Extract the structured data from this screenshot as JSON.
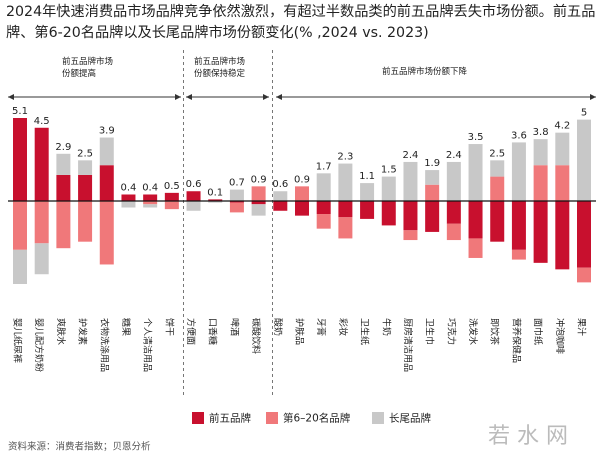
{
  "chart_data": {
    "type": "bar",
    "stacked": true,
    "title": "2024年快速消费品市场品牌竞争依然激烈，有超过半数品类的前五品牌丢失市场份额。前五品牌、第6-20名品牌以及长尾品牌市场份额变化(% ,2024 vs. 2023)",
    "annotations": [
      "前五品牌市场份额提高",
      "前五品牌市场份额保持稳定",
      "前五品牌市场份额下降"
    ],
    "categories": [
      "婴儿纸尿裤",
      "婴儿配方奶粉",
      "爽肤水",
      "护发素",
      "衣物洗涤用品",
      "糖果",
      "个人清洁用品",
      "饼干",
      "方便面",
      "口香糖",
      "啤酒",
      "碳酸饮料",
      "酸奶",
      "护肤品",
      "牙膏",
      "彩妆",
      "卫生纸",
      "牛奶",
      "厨房清洁用品",
      "卫生巾",
      "巧克力",
      "洗发水",
      "即饮茶",
      "营养保健品",
      "面巾纸",
      "冲泡咖啡",
      "果汁"
    ],
    "series": [
      {
        "name": "前五品牌",
        "color": "#c8102e",
        "values": [
          5.1,
          4.5,
          1.6,
          1.6,
          2.2,
          0.4,
          0.4,
          0.5,
          0.6,
          0.1,
          -0.1,
          -0.2,
          -0.6,
          -0.9,
          -0.8,
          -1.0,
          -1.1,
          -1.5,
          -1.8,
          -1.9,
          -1.4,
          -2.3,
          -2.5,
          -3.0,
          -3.8,
          -4.2,
          -4.1
        ]
      },
      {
        "name": "第6–20名品牌",
        "color": "#f0787a",
        "values": [
          -3.0,
          -2.6,
          -2.9,
          -2.5,
          -3.9,
          0,
          -0.2,
          -0.5,
          0,
          0,
          -0.6,
          0.9,
          0,
          0.9,
          -0.9,
          -1.3,
          0,
          0,
          -0.6,
          1.0,
          -1.0,
          -1.2,
          1.5,
          -0.6,
          2.2,
          2.2,
          -0.9
        ]
      },
      {
        "name": "长尾品牌",
        "color": "#c8c8c8",
        "values": [
          -2.1,
          -1.9,
          1.3,
          0.9,
          1.7,
          -0.4,
          -0.2,
          0,
          -0.6,
          -0.1,
          0.7,
          -0.7,
          0.6,
          0,
          1.7,
          2.3,
          1.1,
          1.5,
          2.4,
          0.9,
          2.4,
          3.5,
          1.0,
          3.6,
          1.6,
          2.0,
          5.0
        ]
      }
    ],
    "totals": [
      5.1,
      4.5,
      2.9,
      2.5,
      3.9,
      0.4,
      0.4,
      0.5,
      0.6,
      0.1,
      0.7,
      0.9,
      0.6,
      0.9,
      1.7,
      2.3,
      1.1,
      1.5,
      2.4,
      1.9,
      2.4,
      3.5,
      2.5,
      3.6,
      3.8,
      4.2,
      5.0
    ],
    "source": "资料来源：消费者指数；贝恩分析",
    "watermark": "若 水 网"
  }
}
